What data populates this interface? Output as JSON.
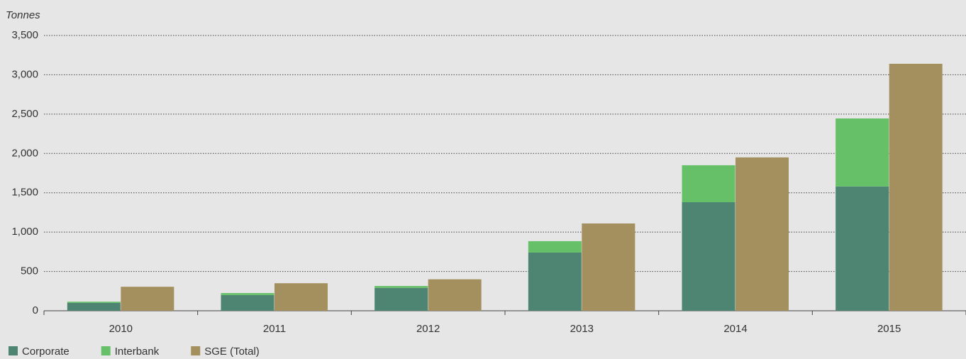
{
  "chart_data": {
    "type": "bar",
    "y_label": "Tonnes",
    "categories": [
      "2010",
      "2011",
      "2012",
      "2013",
      "2014",
      "2015"
    ],
    "series": [
      {
        "name": "Corporate",
        "color": "#4e8472",
        "values": [
          100,
          200,
          290,
          740,
          1380,
          1580
        ]
      },
      {
        "name": "Interbank",
        "color": "#66c068",
        "values": [
          15,
          25,
          25,
          145,
          470,
          865
        ]
      },
      {
        "name": "SGE (Total)",
        "color": "#a3905e",
        "values": [
          305,
          350,
          400,
          1110,
          1950,
          3140
        ]
      }
    ],
    "stack_groups": [
      [
        0,
        1
      ],
      [
        2
      ]
    ],
    "ylim": [
      0,
      3500
    ],
    "yticks": [
      0,
      500,
      {
        "value": 1000,
        "label": "1,000"
      },
      {
        "value": 1500,
        "label": "1,500"
      },
      {
        "value": 2000,
        "label": "2,000"
      },
      {
        "value": 2500,
        "label": "2,500"
      },
      {
        "value": 3000,
        "label": "3,000"
      },
      {
        "value": 3500,
        "label": "3,500"
      }
    ],
    "grid": true,
    "legend": "bottom-left"
  }
}
